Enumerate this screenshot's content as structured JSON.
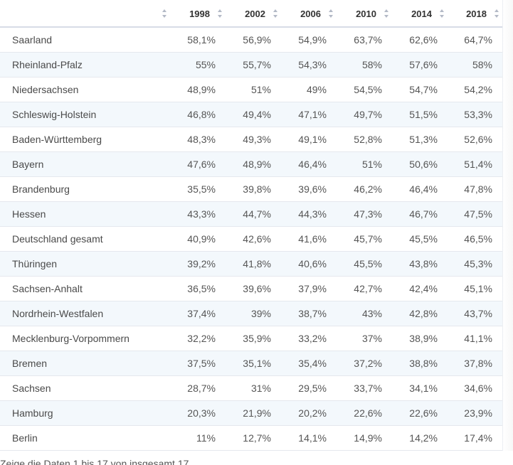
{
  "table": {
    "columns": [
      "",
      "1998",
      "2002",
      "2006",
      "2010",
      "2014",
      "2018"
    ],
    "rows": [
      {
        "region": "Saarland",
        "values": [
          "58,1%",
          "56,9%",
          "54,9%",
          "63,7%",
          "62,6%",
          "64,7%"
        ]
      },
      {
        "region": "Rheinland-Pfalz",
        "values": [
          "55%",
          "55,7%",
          "54,3%",
          "58%",
          "57,6%",
          "58%"
        ]
      },
      {
        "region": "Niedersachsen",
        "values": [
          "48,9%",
          "51%",
          "49%",
          "54,5%",
          "54,7%",
          "54,2%"
        ]
      },
      {
        "region": "Schleswig-Holstein",
        "values": [
          "46,8%",
          "49,4%",
          "47,1%",
          "49,7%",
          "51,5%",
          "53,3%"
        ]
      },
      {
        "region": "Baden-Württemberg",
        "values": [
          "48,3%",
          "49,3%",
          "49,1%",
          "52,8%",
          "51,3%",
          "52,6%"
        ]
      },
      {
        "region": "Bayern",
        "values": [
          "47,6%",
          "48,9%",
          "46,4%",
          "51%",
          "50,6%",
          "51,4%"
        ]
      },
      {
        "region": "Brandenburg",
        "values": [
          "35,5%",
          "39,8%",
          "39,6%",
          "46,2%",
          "46,4%",
          "47,8%"
        ]
      },
      {
        "region": "Hessen",
        "values": [
          "43,3%",
          "44,7%",
          "44,3%",
          "47,3%",
          "46,7%",
          "47,5%"
        ]
      },
      {
        "region": "Deutschland gesamt",
        "values": [
          "40,9%",
          "42,6%",
          "41,6%",
          "45,7%",
          "45,5%",
          "46,5%"
        ]
      },
      {
        "region": "Thüringen",
        "values": [
          "39,2%",
          "41,8%",
          "40,6%",
          "45,5%",
          "43,8%",
          "45,3%"
        ]
      },
      {
        "region": "Sachsen-Anhalt",
        "values": [
          "36,5%",
          "39,6%",
          "37,9%",
          "42,7%",
          "42,4%",
          "45,1%"
        ]
      },
      {
        "region": "Nordrhein-Westfalen",
        "values": [
          "37,4%",
          "39%",
          "38,7%",
          "43%",
          "42,8%",
          "43,7%"
        ]
      },
      {
        "region": "Mecklenburg-Vorpommern",
        "values": [
          "32,2%",
          "35,9%",
          "33,2%",
          "37%",
          "38,9%",
          "41,1%"
        ]
      },
      {
        "region": "Bremen",
        "values": [
          "37,5%",
          "35,1%",
          "35,4%",
          "37,2%",
          "38,8%",
          "37,8%"
        ]
      },
      {
        "region": "Sachsen",
        "values": [
          "28,7%",
          "31%",
          "29,5%",
          "33,7%",
          "34,1%",
          "34,6%"
        ]
      },
      {
        "region": "Hamburg",
        "values": [
          "20,3%",
          "21,9%",
          "20,2%",
          "22,6%",
          "22,6%",
          "23,9%"
        ]
      },
      {
        "region": "Berlin",
        "values": [
          "11%",
          "12,7%",
          "14,1%",
          "14,9%",
          "14,2%",
          "17,4%"
        ]
      }
    ]
  },
  "footnote": "Zeige die Daten 1 bis 17 von insgesamt 17"
}
